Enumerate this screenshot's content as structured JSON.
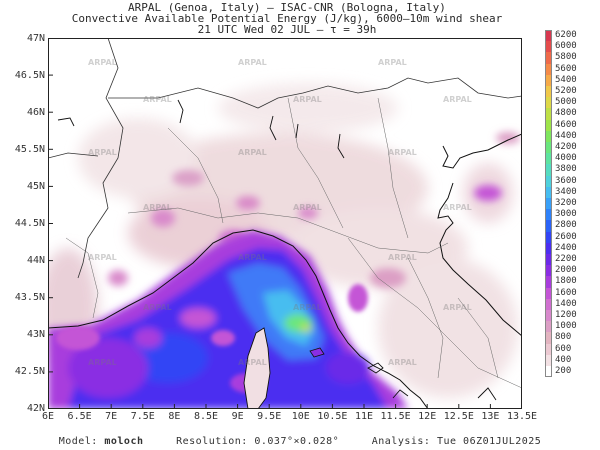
{
  "header": {
    "line1": "ARPAL (Genoa, Italy)  —  ISAC-CNR (Bologna, Italy)",
    "line2": "Convective Available Potential Energy (J/kg), 6000–10m wind shear",
    "line3": "21 UTC Wed 02 JUL  —  τ = 39h"
  },
  "map": {
    "y_ticks": [
      "47N",
      "46.5N",
      "46N",
      "45.5N",
      "45N",
      "44.5N",
      "44N",
      "43.5N",
      "43N",
      "42.5N",
      "42N"
    ],
    "x_ticks": [
      "6E",
      "6.5E",
      "7E",
      "7.5E",
      "8E",
      "8.5E",
      "9E",
      "9.5E",
      "10E",
      "10.5E",
      "11E",
      "11.5E",
      "12E",
      "12.5E",
      "13E",
      "13.5E"
    ],
    "lon_range": [
      6,
      13.5
    ],
    "lat_range": [
      42,
      47
    ],
    "watermark": "ARPAL"
  },
  "colorbar": {
    "labels": [
      "200",
      "400",
      "600",
      "800",
      "1000",
      "1200",
      "1400",
      "1600",
      "1800",
      "2000",
      "2200",
      "2400",
      "2600",
      "2800",
      "3000",
      "3200",
      "3400",
      "3600",
      "3800",
      "4000",
      "4200",
      "4400",
      "4600",
      "4800",
      "5000",
      "5200",
      "5400",
      "5600",
      "5800",
      "6000",
      "6200"
    ],
    "colors": [
      "#ffffff",
      "#f3e1e4",
      "#ecc9d2",
      "#e3b4c0",
      "#dc9fc5",
      "#d889cc",
      "#d070d0",
      "#c455d6",
      "#a83ddd",
      "#8a2ee3",
      "#6b2ae8",
      "#4b2ff0",
      "#3345f5",
      "#2b63f8",
      "#2e82fa",
      "#39a0f8",
      "#46bdf0",
      "#4fd1dc",
      "#55dcc0",
      "#5de3a0",
      "#6ae67e",
      "#7fe65e",
      "#9ee44a",
      "#bfe046",
      "#ded848",
      "#f0c84a",
      "#f6aa48",
      "#f58a48",
      "#ef6a4a",
      "#e54c4c",
      "#d83850"
    ]
  },
  "footer": {
    "model_label": "Model:",
    "model_value": "moloch",
    "resolution_label": "Resolution:",
    "resolution_value": "0.037°×0.028°",
    "analysis_label": "Analysis:",
    "analysis_value": "Tue 06Z01JUL2025"
  }
}
